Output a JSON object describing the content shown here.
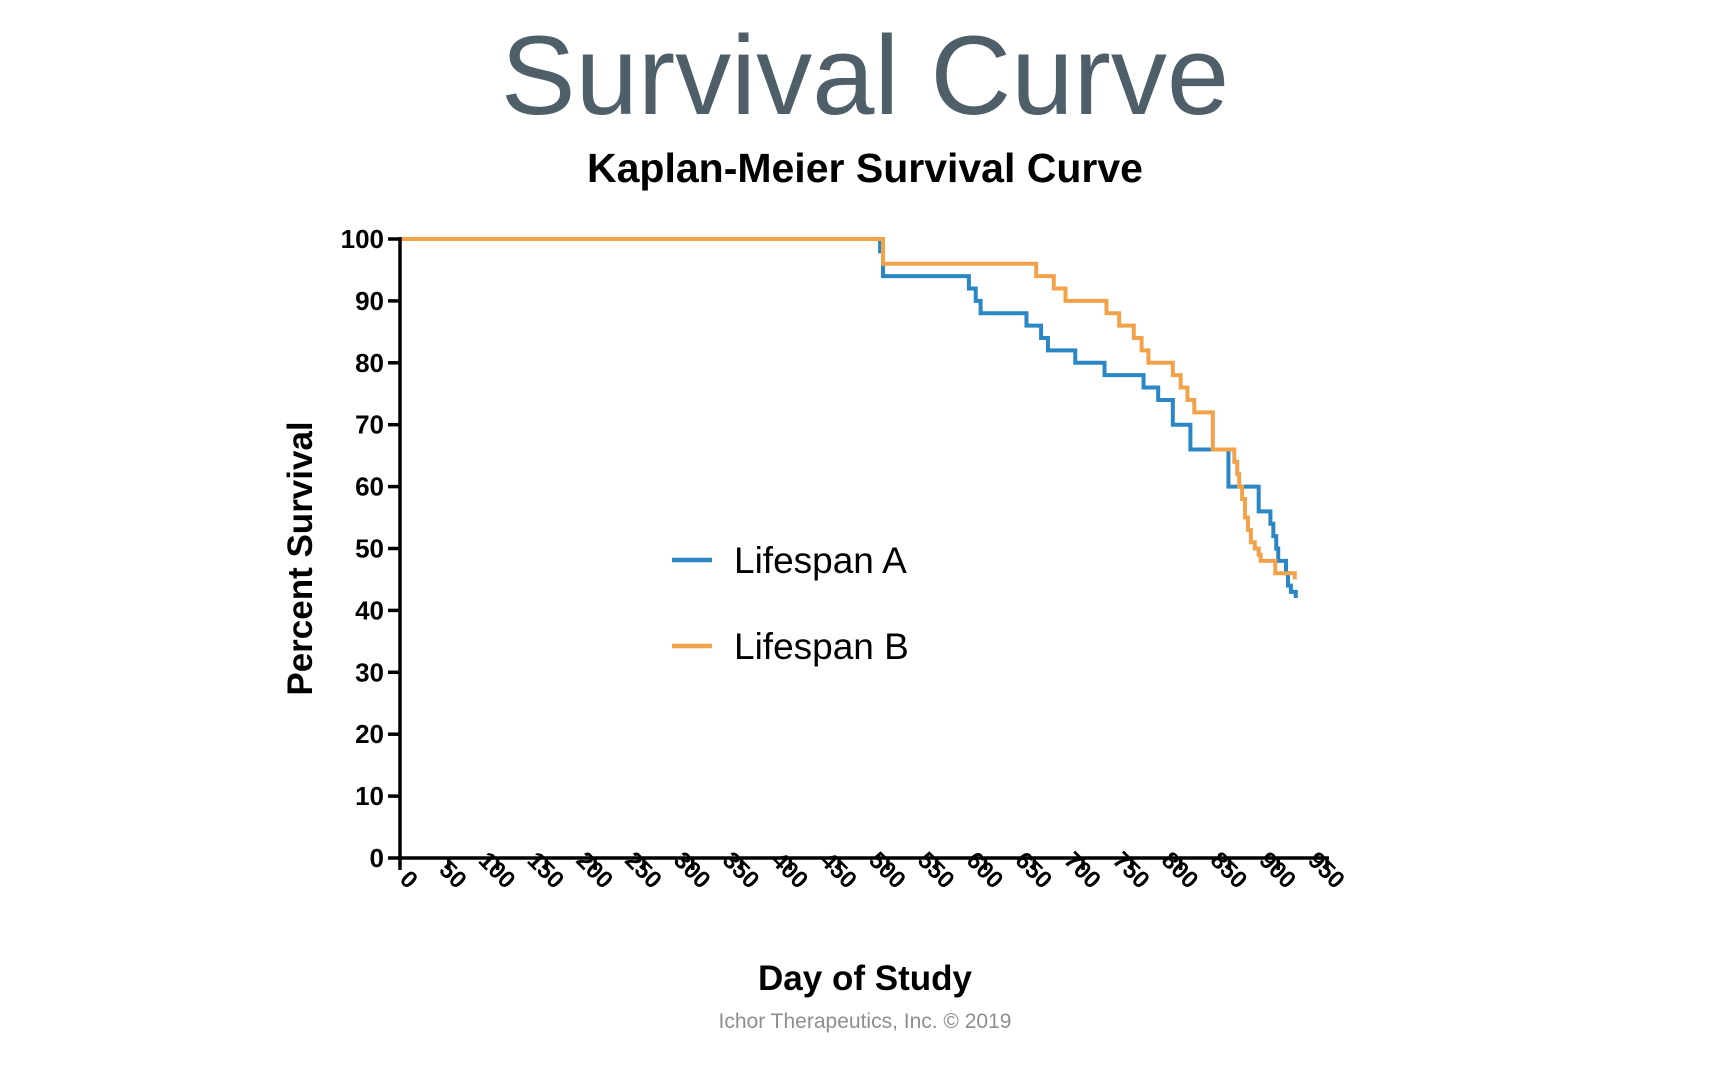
{
  "slide": {
    "title": "Survival Curve",
    "footer": "Ichor Therapeutics, Inc. © 2019"
  },
  "chart_data": {
    "type": "line",
    "step": true,
    "title": "Kaplan-Meier Survival Curve",
    "xlabel": "Day of Study",
    "ylabel": "Percent Survival",
    "xlim": [
      0,
      950
    ],
    "ylim": [
      0,
      100
    ],
    "xticks": [
      0,
      50,
      100,
      150,
      200,
      250,
      300,
      350,
      400,
      450,
      500,
      550,
      600,
      650,
      700,
      750,
      800,
      850,
      900,
      950
    ],
    "yticks": [
      0,
      10,
      20,
      30,
      40,
      50,
      60,
      70,
      80,
      90,
      100
    ],
    "xtick_labels": [
      "0",
      "50",
      "100",
      "150",
      "200",
      "250",
      "300",
      "350",
      "400",
      "450",
      "500",
      "550",
      "600",
      "650",
      "700",
      "750",
      "800",
      "850",
      "900",
      "950"
    ],
    "ytick_labels": [
      "0",
      "10",
      "20",
      "30",
      "40",
      "50",
      "60",
      "70",
      "80",
      "90",
      "100"
    ],
    "grid": false,
    "legend_position": "center-left",
    "series": [
      {
        "name": "Lifespan A",
        "color": "#2a86c4",
        "points": [
          [
            0,
            100
          ],
          [
            490,
            100
          ],
          [
            492,
            98
          ],
          [
            495,
            94
          ],
          [
            580,
            94
          ],
          [
            583,
            92
          ],
          [
            590,
            90
          ],
          [
            595,
            88
          ],
          [
            640,
            88
          ],
          [
            642,
            86
          ],
          [
            655,
            86
          ],
          [
            657,
            84
          ],
          [
            662,
            84
          ],
          [
            664,
            82
          ],
          [
            690,
            82
          ],
          [
            692,
            80
          ],
          [
            720,
            80
          ],
          [
            722,
            78
          ],
          [
            760,
            78
          ],
          [
            762,
            76
          ],
          [
            775,
            76
          ],
          [
            777,
            74
          ],
          [
            790,
            74
          ],
          [
            792,
            70
          ],
          [
            808,
            70
          ],
          [
            810,
            66
          ],
          [
            847,
            66
          ],
          [
            849,
            60
          ],
          [
            878,
            60
          ],
          [
            880,
            56
          ],
          [
            890,
            56
          ],
          [
            892,
            54
          ],
          [
            895,
            52
          ],
          [
            898,
            50
          ],
          [
            900,
            48
          ],
          [
            905,
            48
          ],
          [
            908,
            46
          ],
          [
            910,
            44
          ],
          [
            913,
            43
          ],
          [
            916,
            43
          ],
          [
            918,
            42
          ]
        ]
      },
      {
        "name": "Lifespan B",
        "color": "#f2a34a",
        "points": [
          [
            0,
            100
          ],
          [
            490,
            100
          ],
          [
            495,
            96
          ],
          [
            650,
            96
          ],
          [
            652,
            94
          ],
          [
            668,
            94
          ],
          [
            670,
            92
          ],
          [
            680,
            92
          ],
          [
            682,
            90
          ],
          [
            722,
            90
          ],
          [
            724,
            88
          ],
          [
            735,
            88
          ],
          [
            737,
            86
          ],
          [
            750,
            86
          ],
          [
            752,
            84
          ],
          [
            758,
            84
          ],
          [
            760,
            82
          ],
          [
            765,
            82
          ],
          [
            767,
            80
          ],
          [
            790,
            80
          ],
          [
            792,
            78
          ],
          [
            798,
            78
          ],
          [
            800,
            76
          ],
          [
            805,
            76
          ],
          [
            807,
            74
          ],
          [
            812,
            74
          ],
          [
            814,
            72
          ],
          [
            831,
            72
          ],
          [
            833,
            66
          ],
          [
            853,
            66
          ],
          [
            855,
            64
          ],
          [
            858,
            62
          ],
          [
            860,
            60
          ],
          [
            863,
            58
          ],
          [
            866,
            55
          ],
          [
            869,
            53
          ],
          [
            872,
            51
          ],
          [
            876,
            50
          ],
          [
            880,
            49
          ],
          [
            882,
            48
          ],
          [
            895,
            48
          ],
          [
            897,
            46
          ],
          [
            915,
            46
          ],
          [
            917,
            45
          ]
        ]
      }
    ]
  }
}
